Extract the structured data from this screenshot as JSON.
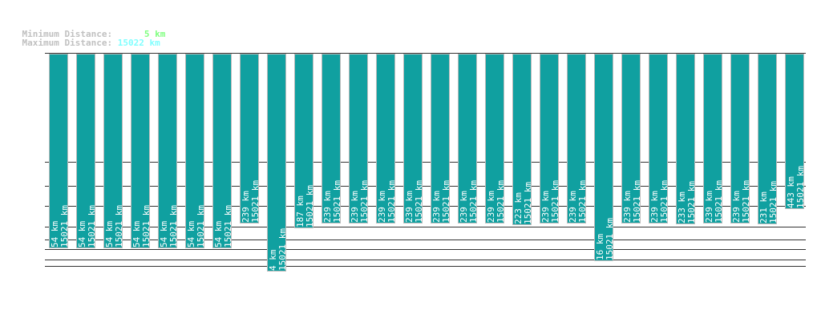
{
  "header": {
    "min_label": "Minimum Distance:",
    "min_value": "5 km",
    "min_color": "#80ff80",
    "max_label": "Maximum Distance:",
    "max_value": "15022 km",
    "max_color": "#80ffff"
  },
  "chart_data": {
    "type": "bar",
    "orientation": "vertical, hanging from top",
    "bar_color": "#10a0a0",
    "grid": true,
    "unit": "km",
    "series": [
      {
        "name": "min",
        "values": [
          54,
          54,
          54,
          54,
          54,
          54,
          54,
          239,
          4,
          187,
          239,
          239,
          239,
          239,
          239,
          239,
          239,
          223,
          239,
          239,
          16,
          239,
          239,
          233,
          239,
          239,
          231,
          443
        ]
      },
      {
        "name": "max",
        "values": [
          15021,
          15021,
          15021,
          15021,
          15021,
          15021,
          15021,
          15021,
          15021,
          15021,
          15021,
          15021,
          15021,
          15021,
          15021,
          15021,
          15021,
          15021,
          15021,
          15021,
          15021,
          15021,
          15021,
          15021,
          15021,
          15021,
          15021,
          15021
        ]
      }
    ]
  }
}
